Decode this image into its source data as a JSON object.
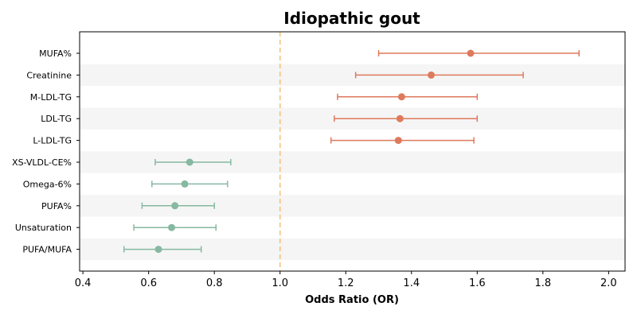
{
  "chart_data": {
    "type": "forest",
    "title": "Idiopathic gout",
    "xlabel": "Odds Ratio (OR)",
    "ylabel": "",
    "xlim": [
      0.39,
      2.05
    ],
    "xticks": [
      "0.4",
      "0.6",
      "0.8",
      "1.0",
      "1.2",
      "1.4",
      "1.6",
      "1.8",
      "2.0"
    ],
    "reference_line": 1.0,
    "reference_color": "#f6c27a",
    "colors": {
      "risk": "#de7a5c",
      "protective": "#86b9a0",
      "band": "#f5f5f5"
    },
    "rows": [
      {
        "label": "MUFA%",
        "or": 1.58,
        "low": 1.3,
        "high": 1.91,
        "group": "risk"
      },
      {
        "label": "Creatinine",
        "or": 1.46,
        "low": 1.23,
        "high": 1.74,
        "group": "risk"
      },
      {
        "label": "M-LDL-TG",
        "or": 1.37,
        "low": 1.175,
        "high": 1.6,
        "group": "risk"
      },
      {
        "label": "LDL-TG",
        "or": 1.365,
        "low": 1.165,
        "high": 1.6,
        "group": "risk"
      },
      {
        "label": "L-LDL-TG",
        "or": 1.36,
        "low": 1.155,
        "high": 1.59,
        "group": "risk"
      },
      {
        "label": "XS-VLDL-CE%",
        "or": 0.725,
        "low": 0.62,
        "high": 0.85,
        "group": "protective"
      },
      {
        "label": "Omega-6%",
        "or": 0.71,
        "low": 0.61,
        "high": 0.84,
        "group": "protective"
      },
      {
        "label": "PUFA%",
        "or": 0.68,
        "low": 0.58,
        "high": 0.8,
        "group": "protective"
      },
      {
        "label": "Unsaturation",
        "or": 0.67,
        "low": 0.555,
        "high": 0.805,
        "group": "protective"
      },
      {
        "label": "PUFA/MUFA",
        "or": 0.63,
        "low": 0.525,
        "high": 0.76,
        "group": "protective"
      }
    ]
  }
}
